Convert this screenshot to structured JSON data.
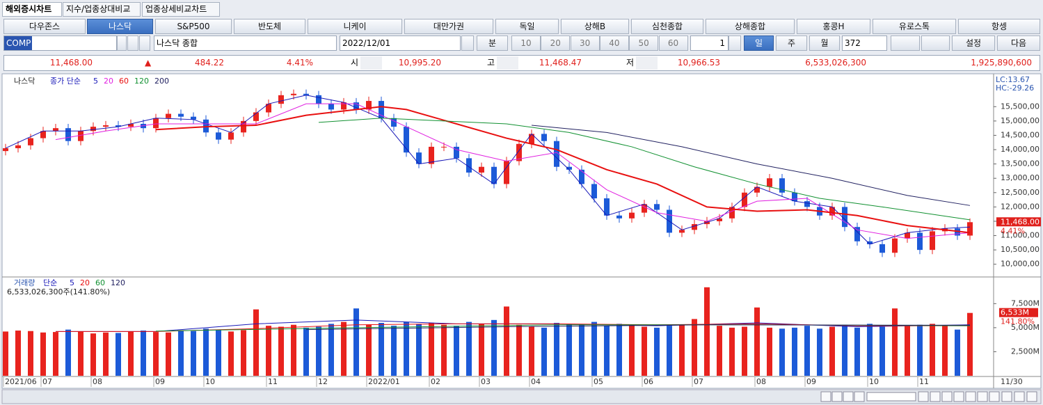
{
  "tabs": [
    "해외증시차트",
    "지수/업종상대비교",
    "업종상세비교차트"
  ],
  "markets": [
    "다우존스",
    "나스닥",
    "S&P500",
    "반도체",
    "니케이",
    "대만가권",
    "독일",
    "상해B",
    "심천종합",
    "상해종합",
    "홍콩H",
    "유로스톡",
    "항셍"
  ],
  "toolbar": {
    "symbol": "COMP",
    "name": "나스닥 종합",
    "date": "2022/12/01",
    "unit": "분",
    "periods": [
      "10",
      "20",
      "30",
      "40",
      "50",
      "60"
    ],
    "count_select": "1",
    "day": "일",
    "week": "주",
    "month": "월",
    "count": "372",
    "settings": "설정",
    "next": "다음"
  },
  "quote": {
    "close": "11,468.00",
    "direction": "▲",
    "change": "484.22",
    "pct": "4.41%",
    "open_label": "시",
    "open": "10,995.20",
    "high_label": "고",
    "high": "11,468.47",
    "low_label": "저",
    "low": "10,966.53",
    "volume": "6,533,026,300",
    "amount": "1,925,890,600"
  },
  "chart_data": [
    {
      "type": "candlestick",
      "title": "나스닥",
      "legend_prefix": "종가 단순",
      "categories": [
        "2021/06",
        null,
        null,
        "07",
        null,
        null,
        null,
        "08",
        null,
        null,
        null,
        null,
        "09",
        null,
        null,
        null,
        "10",
        null,
        null,
        null,
        null,
        "11",
        null,
        null,
        null,
        "12",
        null,
        null,
        null,
        "2022/01",
        null,
        null,
        null,
        null,
        "02",
        null,
        null,
        null,
        "03",
        null,
        null,
        null,
        "04",
        null,
        null,
        null,
        null,
        "05",
        null,
        null,
        null,
        "06",
        null,
        null,
        null,
        "07",
        null,
        null,
        null,
        null,
        "08",
        null,
        null,
        null,
        "09",
        null,
        null,
        null,
        null,
        "10",
        null,
        null,
        null,
        "11",
        null,
        null,
        null,
        null
      ],
      "open": [
        13950,
        14050,
        14150,
        14400,
        14650,
        14750,
        14300,
        14650,
        14800,
        14850,
        14800,
        14900,
        14750,
        15100,
        15250,
        15150,
        15050,
        14600,
        14350,
        14600,
        15000,
        15300,
        15600,
        15900,
        15950,
        15900,
        15600,
        15400,
        15650,
        15400,
        15700,
        15100,
        14800,
        13900,
        13500,
        14100,
        14100,
        13700,
        13200,
        13400,
        12800,
        13600,
        14200,
        14550,
        14300,
        13400,
        13300,
        12800,
        12300,
        11700,
        11600,
        11800,
        12100,
        11900,
        11100,
        11200,
        11400,
        11500,
        11600,
        12000,
        12500,
        12700,
        13000,
        12500,
        12200,
        12000,
        11700,
        12000,
        11300,
        10800,
        10700,
        10400,
        10900,
        11100,
        10500,
        11150,
        11250,
        11000
      ],
      "high": [
        14200,
        14300,
        14550,
        14800,
        14900,
        14900,
        14800,
        14950,
        15000,
        15000,
        15050,
        15050,
        15250,
        15400,
        15400,
        15300,
        15200,
        14750,
        14750,
        15150,
        15450,
        15750,
        16050,
        16100,
        16100,
        16050,
        15750,
        15800,
        15800,
        15850,
        15850,
        15250,
        14950,
        14050,
        14250,
        14250,
        14250,
        13850,
        13550,
        13550,
        13750,
        14350,
        14700,
        14700,
        14450,
        13550,
        13450,
        12950,
        12450,
        11850,
        11950,
        12250,
        12250,
        12050,
        11350,
        11550,
        11650,
        11750,
        12150,
        12650,
        12850,
        13150,
        13150,
        12650,
        12350,
        12150,
        12150,
        12150,
        11450,
        10950,
        10850,
        11050,
        11250,
        11250,
        11300,
        11400,
        11400,
        11600
      ],
      "low": [
        13800,
        13900,
        14000,
        14250,
        14500,
        14150,
        14150,
        14500,
        14650,
        14650,
        14650,
        14600,
        14600,
        14950,
        15000,
        14900,
        14450,
        14200,
        14200,
        14450,
        14850,
        15150,
        15450,
        15750,
        15750,
        15450,
        15250,
        15250,
        15250,
        15250,
        14950,
        14650,
        13750,
        13350,
        13350,
        13950,
        13550,
        13050,
        13050,
        12650,
        12650,
        13450,
        14050,
        14150,
        13250,
        13150,
        12650,
        12150,
        11550,
        11450,
        11450,
        11650,
        11750,
        10950,
        10950,
        11050,
        11250,
        11350,
        11450,
        11850,
        12350,
        12550,
        12350,
        12050,
        11850,
        11550,
        11550,
        11150,
        10650,
        10550,
        10250,
        10250,
        10750,
        10350,
        10350,
        11000,
        10850,
        10850
      ],
      "close": [
        14050,
        14150,
        14400,
        14650,
        14750,
        14300,
        14650,
        14800,
        14850,
        14800,
        14900,
        14750,
        15100,
        15250,
        15150,
        15050,
        14600,
        14350,
        14600,
        15000,
        15300,
        15600,
        15900,
        15950,
        15900,
        15600,
        15400,
        15650,
        15400,
        15700,
        15100,
        14800,
        13900,
        13500,
        14100,
        14100,
        13700,
        13200,
        13400,
        12800,
        13600,
        14200,
        14550,
        14300,
        13400,
        13300,
        12800,
        12300,
        11700,
        11600,
        11800,
        12100,
        11900,
        11100,
        11200,
        11400,
        11500,
        11600,
        12000,
        12500,
        12700,
        13000,
        12500,
        12200,
        12000,
        11700,
        12000,
        11300,
        10800,
        10700,
        10400,
        10900,
        11100,
        10500,
        11150,
        11250,
        11000,
        11468
      ],
      "up_color": "#e8231e",
      "down_color": "#1c5ad8",
      "ylim": [
        9580,
        16600
      ],
      "yticks": [
        {
          "value": 10000,
          "label": "10,000,00"
        },
        {
          "value": 10500,
          "label": "10,500,00"
        },
        {
          "value": 11000,
          "label": "11,000,00"
        },
        {
          "value": 11500,
          "label": "11,500,00"
        },
        {
          "value": 12000,
          "label": "12,000,00"
        },
        {
          "value": 12500,
          "label": "12,500,00"
        },
        {
          "value": 13000,
          "label": "13,000,00"
        },
        {
          "value": 13500,
          "label": "13,500,00"
        },
        {
          "value": 14000,
          "label": "14,000,00"
        },
        {
          "value": 14500,
          "label": "14,500,00"
        },
        {
          "value": 15000,
          "label": "15,000,00"
        },
        {
          "value": 15500,
          "label": "15,500,00"
        }
      ],
      "series": [
        {
          "name": "5",
          "color": "#1818b8",
          "x": [
            0,
            3,
            6,
            9,
            12,
            15,
            18,
            21,
            24,
            27,
            30,
            33,
            36,
            39,
            42,
            45,
            48,
            51,
            54,
            57,
            60,
            63,
            66,
            69,
            72,
            75,
            77
          ],
          "values": [
            14050,
            14650,
            14650,
            14800,
            15100,
            15050,
            14600,
            15600,
            15900,
            15650,
            15100,
            13500,
            13700,
            12800,
            14550,
            13300,
            11700,
            12100,
            11200,
            11600,
            12700,
            12200,
            12000,
            10700,
            11100,
            11250,
            11300
          ]
        },
        {
          "name": "20",
          "color": "#e020e0",
          "x": [
            4,
            8,
            12,
            16,
            20,
            24,
            28,
            32,
            36,
            40,
            44,
            48,
            52,
            56,
            60,
            64,
            68,
            72,
            77
          ],
          "values": [
            14350,
            14650,
            14900,
            14900,
            14900,
            15600,
            15600,
            14800,
            14000,
            13600,
            13900,
            12600,
            11800,
            11500,
            12200,
            12300,
            11200,
            10900,
            11100
          ]
        },
        {
          "name": "60",
          "color": "#e81010",
          "x": [
            12,
            16,
            20,
            24,
            28,
            30,
            32,
            36,
            40,
            44,
            48,
            52,
            56,
            60,
            64,
            68,
            72,
            77
          ],
          "values": [
            14700,
            14800,
            14850,
            15200,
            15400,
            15500,
            15400,
            14900,
            14400,
            14000,
            13300,
            12800,
            12000,
            11850,
            11900,
            11700,
            11350,
            11100
          ]
        },
        {
          "name": "120",
          "color": "#109030",
          "x": [
            25,
            30,
            35,
            40,
            45,
            50,
            55,
            60,
            65,
            70,
            77
          ],
          "values": [
            14950,
            15100,
            15000,
            14900,
            14600,
            14100,
            13400,
            12800,
            12300,
            12000,
            11550
          ]
        },
        {
          "name": "200",
          "color": "#202060",
          "x": [
            42,
            48,
            54,
            60,
            66,
            72,
            77
          ],
          "values": [
            14850,
            14600,
            14100,
            13500,
            13000,
            12400,
            12050
          ]
        }
      ],
      "corner_labels": [
        "LC:13.67",
        "HC:-29.26"
      ],
      "last_value": {
        "value": 11468,
        "label": "11,468.00"
      },
      "last_change": "4.41%"
    },
    {
      "type": "volume",
      "title": "거래량",
      "legend_prefix": "단순",
      "status": "6,533,026,300주(141.80%)",
      "values": [
        4600,
        4700,
        4650,
        4500,
        4550,
        4800,
        4600,
        4400,
        4500,
        4450,
        4600,
        4700,
        4550,
        4500,
        4700,
        4650,
        4900,
        4800,
        4600,
        4750,
        6900,
        5200,
        5100,
        5300,
        5000,
        5100,
        5400,
        5600,
        7000,
        5300,
        5500,
        5200,
        5600,
        5400,
        5500,
        5300,
        5200,
        5600,
        5400,
        5800,
        7200,
        5300,
        5100,
        5000,
        5500,
        5400,
        5300,
        5600,
        5200,
        5400,
        5300,
        5100,
        5000,
        5200,
        5300,
        5900,
        9200,
        5200,
        5000,
        5100,
        7100,
        5000,
        4900,
        5000,
        5200,
        4900,
        5100,
        5300,
        5000,
        5400,
        5100,
        7000,
        5200,
        5300,
        5400,
        5200,
        4800,
        6533
      ],
      "ylim": [
        0,
        10200
      ],
      "yticks": [
        {
          "value": 2500,
          "label": "2,500M"
        },
        {
          "value": 5000,
          "label": "5,000M"
        },
        {
          "value": 7500,
          "label": "7,500M"
        }
      ],
      "series": [
        {
          "name": "5",
          "color": "#1818b8",
          "x": [
            4,
            12,
            20,
            28,
            36,
            44,
            52,
            60,
            68,
            77
          ],
          "values": [
            4600,
            4600,
            5400,
            5800,
            5400,
            5400,
            5200,
            5500,
            5100,
            5300
          ]
        },
        {
          "name": "20",
          "color": "#e81010",
          "x": [
            4,
            12,
            20,
            28,
            36,
            44,
            52,
            60,
            68,
            77
          ],
          "values": [
            4600,
            4600,
            4900,
            5300,
            5400,
            5400,
            5300,
            5400,
            5200,
            5200
          ]
        },
        {
          "name": "60",
          "color": "#109030",
          "x": [
            12,
            28,
            44,
            60,
            77
          ],
          "values": [
            4650,
            5000,
            5300,
            5300,
            5200
          ]
        },
        {
          "name": "120",
          "color": "#202060",
          "x": [
            24,
            40,
            56,
            77
          ],
          "values": [
            4800,
            5100,
            5300,
            5250
          ]
        }
      ],
      "last_value": {
        "value": 6533,
        "label": "6,533M"
      },
      "last_change": "141.80%"
    }
  ],
  "x_end_label": "11/30"
}
